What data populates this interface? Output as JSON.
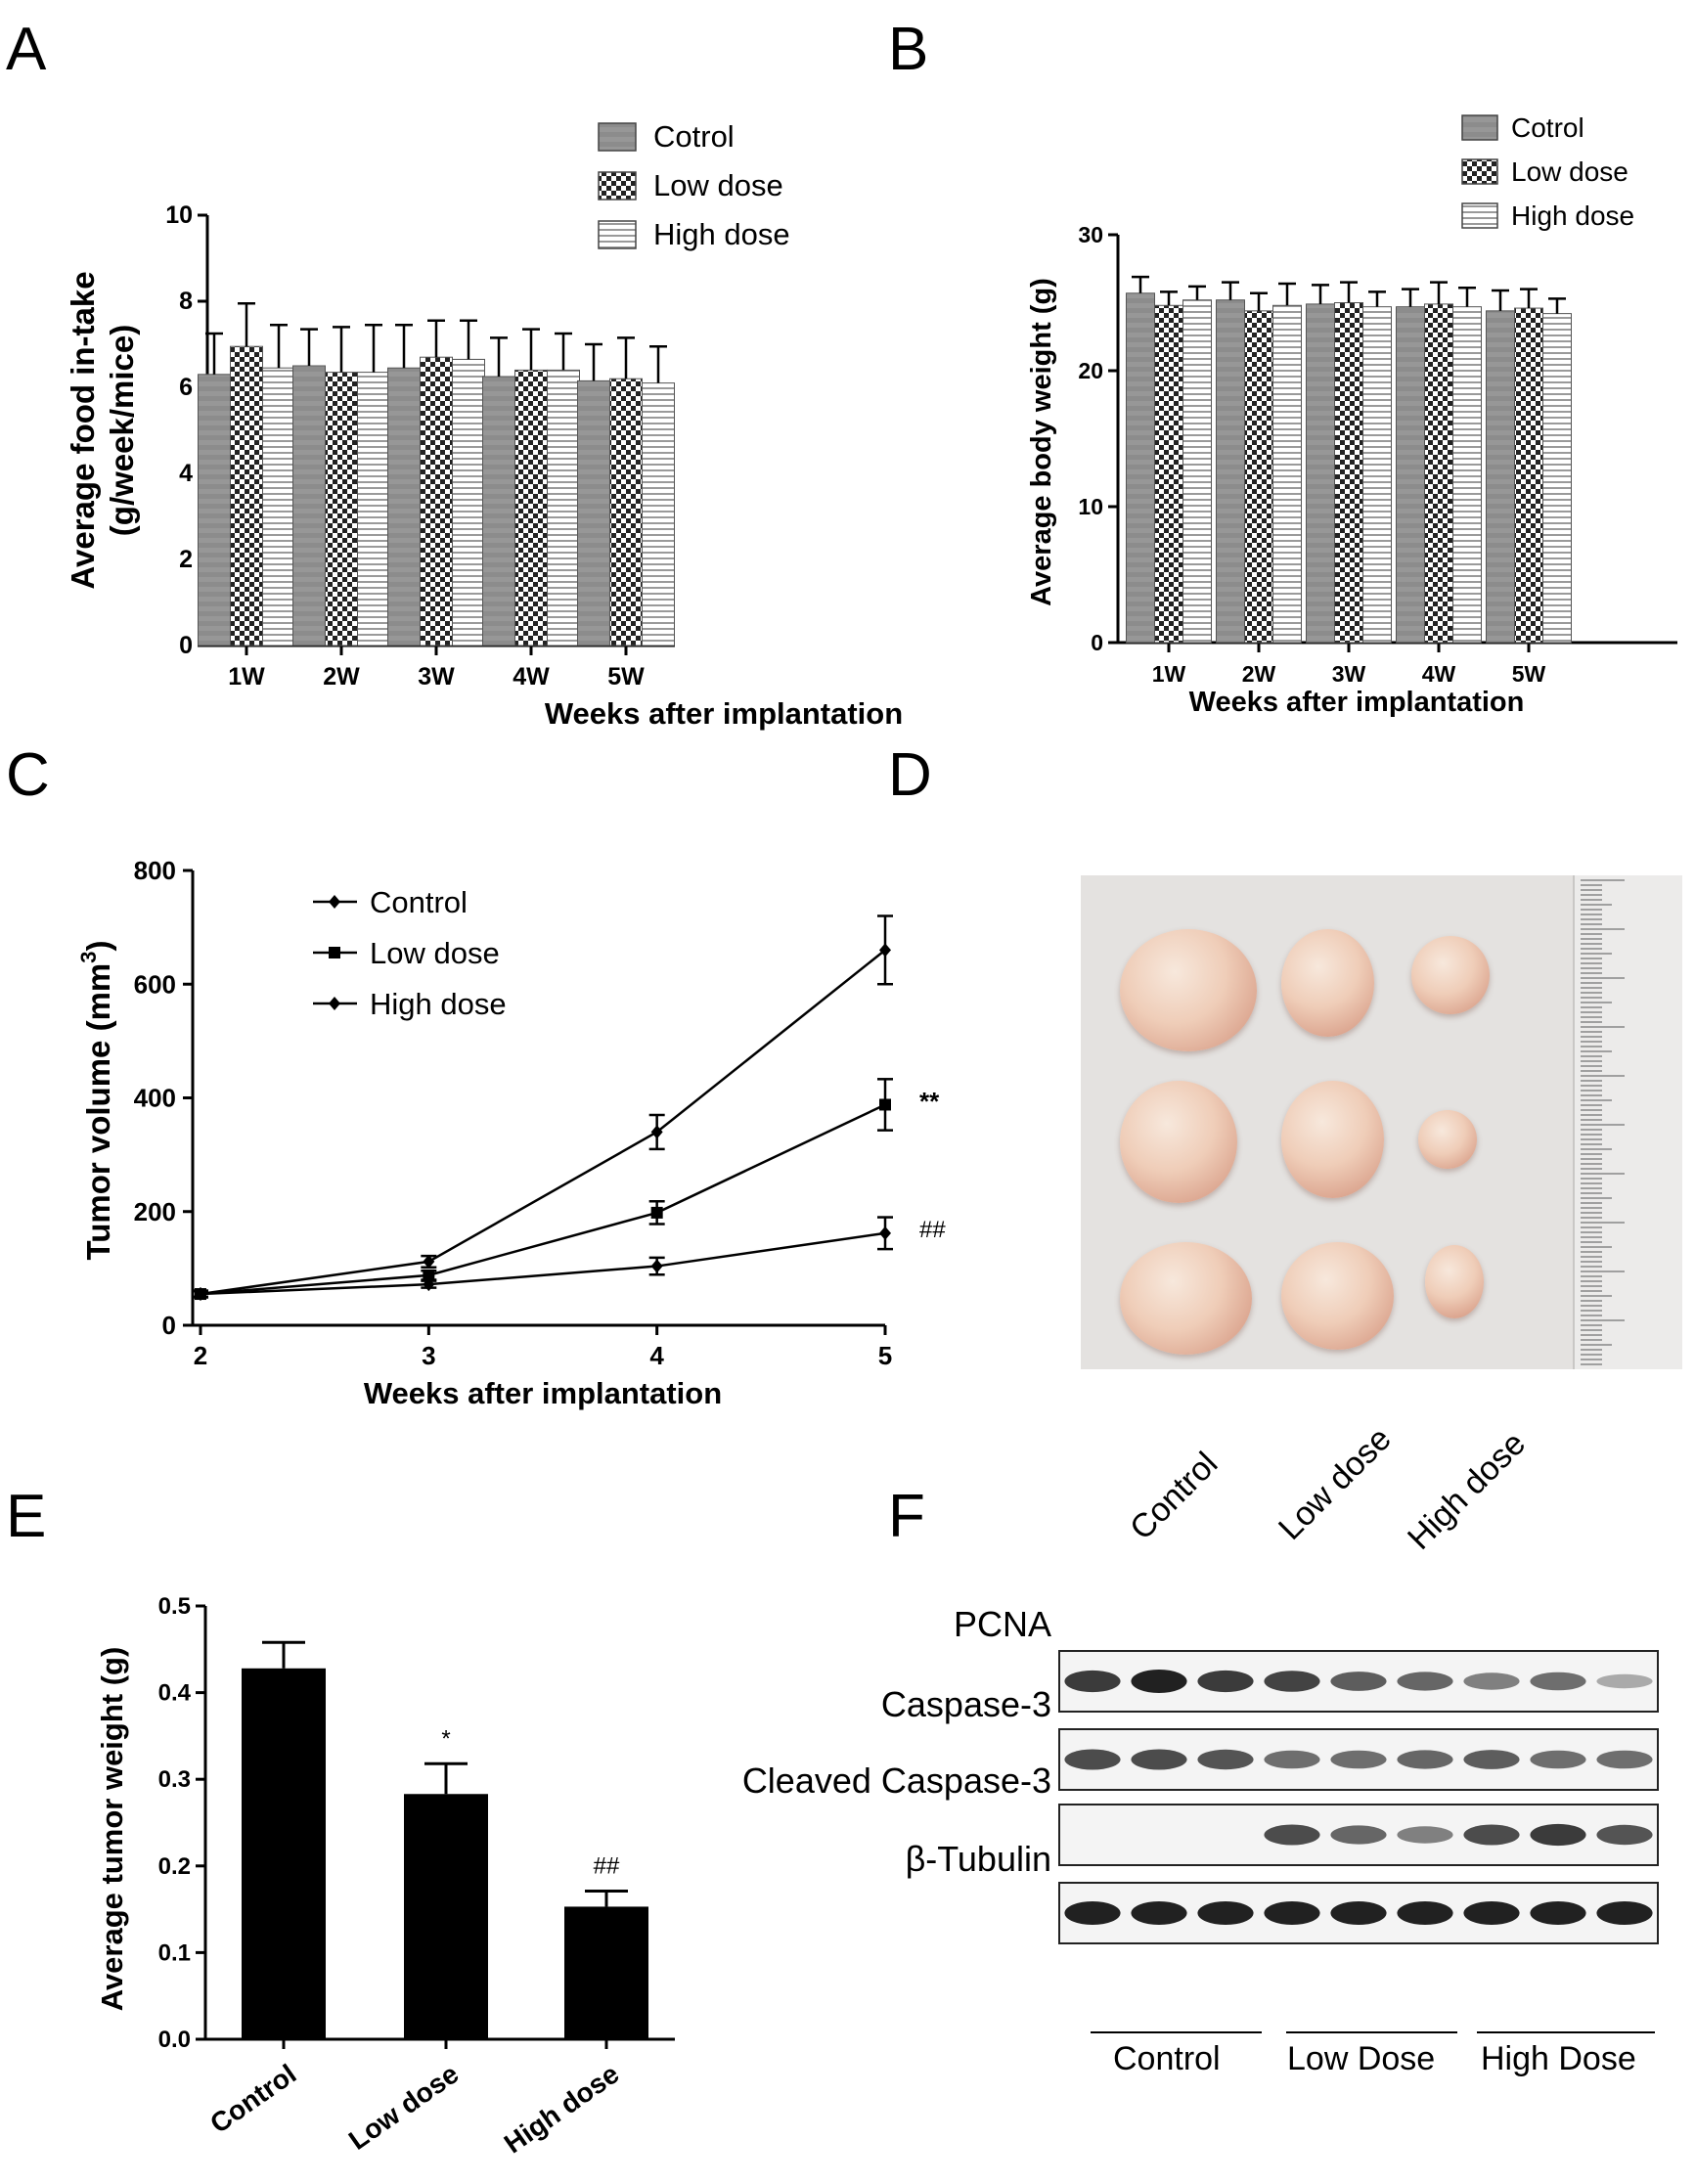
{
  "panels": {
    "A": "A",
    "B": "B",
    "C": "C",
    "D": "D",
    "E": "E",
    "F": "F"
  },
  "chart_data": [
    {
      "id": "A",
      "type": "bar",
      "title": "",
      "xlabel": "Weeks after implantation",
      "ylabel": "Average  food in-take (g/week/mice)",
      "categories": [
        "1W",
        "2W",
        "3W",
        "4W",
        "5W"
      ],
      "ylim": [
        0,
        10
      ],
      "yticks": [
        0,
        2,
        4,
        6,
        8,
        10
      ],
      "legend": "top-right",
      "series": [
        {
          "name": "Cotrol",
          "values": [
            6.3,
            6.5,
            6.45,
            6.25,
            6.15
          ],
          "errors": [
            0.95,
            0.85,
            1.0,
            0.9,
            0.85
          ]
        },
        {
          "name": "Low dose",
          "values": [
            6.95,
            6.35,
            6.7,
            6.4,
            6.2
          ],
          "errors": [
            1.0,
            1.05,
            0.85,
            0.95,
            0.95
          ]
        },
        {
          "name": "High dose",
          "values": [
            6.45,
            6.35,
            6.65,
            6.4,
            6.1
          ],
          "errors": [
            1.0,
            1.1,
            0.9,
            0.85,
            0.85
          ]
        }
      ]
    },
    {
      "id": "B",
      "type": "bar",
      "title": "",
      "xlabel": "Weeks after implantation",
      "ylabel": "Average body weight (g)",
      "categories": [
        "1W",
        "2W",
        "3W",
        "4W",
        "5W"
      ],
      "ylim": [
        0,
        30
      ],
      "yticks": [
        0,
        10,
        20,
        30
      ],
      "legend": "top-right",
      "series": [
        {
          "name": "Cotrol",
          "values": [
            25.7,
            25.2,
            24.9,
            24.7,
            24.4
          ],
          "errors": [
            1.2,
            1.3,
            1.4,
            1.3,
            1.5
          ]
        },
        {
          "name": "Low dose",
          "values": [
            24.8,
            24.4,
            25.0,
            24.9,
            24.6
          ],
          "errors": [
            1.0,
            1.3,
            1.5,
            1.6,
            1.4
          ]
        },
        {
          "name": "High dose",
          "values": [
            25.2,
            24.8,
            24.7,
            24.7,
            24.2
          ],
          "errors": [
            1.0,
            1.6,
            1.1,
            1.4,
            1.1
          ]
        }
      ]
    },
    {
      "id": "C",
      "type": "line",
      "title": "",
      "xlabel": "Weeks after implantation",
      "ylabel": "Tumor volume (mm",
      "ylabel_sup": "3",
      "ylabel_end": ")",
      "x": [
        2,
        3,
        4,
        5
      ],
      "xlim": [
        2,
        5
      ],
      "ylim": [
        0,
        800
      ],
      "yticks": [
        0,
        200,
        400,
        600,
        800
      ],
      "legend": "top-left",
      "series": [
        {
          "name": "Control",
          "values": [
            55,
            112,
            340,
            660
          ],
          "errors": [
            6,
            10,
            30,
            60
          ],
          "marker": "diamond"
        },
        {
          "name": "Low dose",
          "values": [
            55,
            88,
            198,
            388
          ],
          "errors": [
            5,
            8,
            20,
            45
          ],
          "marker": "square"
        },
        {
          "name": "High dose",
          "values": [
            55,
            72,
            104,
            162
          ],
          "errors": [
            5,
            6,
            15,
            28
          ],
          "marker": "diamond"
        }
      ],
      "annotations": [
        "**",
        "##"
      ]
    },
    {
      "id": "E",
      "type": "bar",
      "title": "",
      "xlabel": "",
      "ylabel": "Average tumor weight (g)",
      "categories": [
        "Control",
        "Low dose",
        "High dose"
      ],
      "ylim": [
        0,
        0.5
      ],
      "yticks": [
        "0.0",
        "0.1",
        "0.2",
        "0.3",
        "0.4",
        "0.5"
      ],
      "series": [
        {
          "name": "Tumor weight",
          "values": [
            0.428,
            0.283,
            0.153
          ],
          "errors": [
            0.03,
            0.035,
            0.018
          ]
        }
      ],
      "annotations": [
        "",
        "*",
        "##"
      ]
    }
  ],
  "panelD": {
    "lane_labels": [
      "Control",
      "Low dose",
      "High dose"
    ]
  },
  "panelF": {
    "rows": [
      "PCNA",
      "Caspase-3",
      "Cleaved Caspase-3",
      "β-Tubulin"
    ],
    "groups": [
      "Control",
      "Low Dose",
      "High Dose"
    ]
  }
}
